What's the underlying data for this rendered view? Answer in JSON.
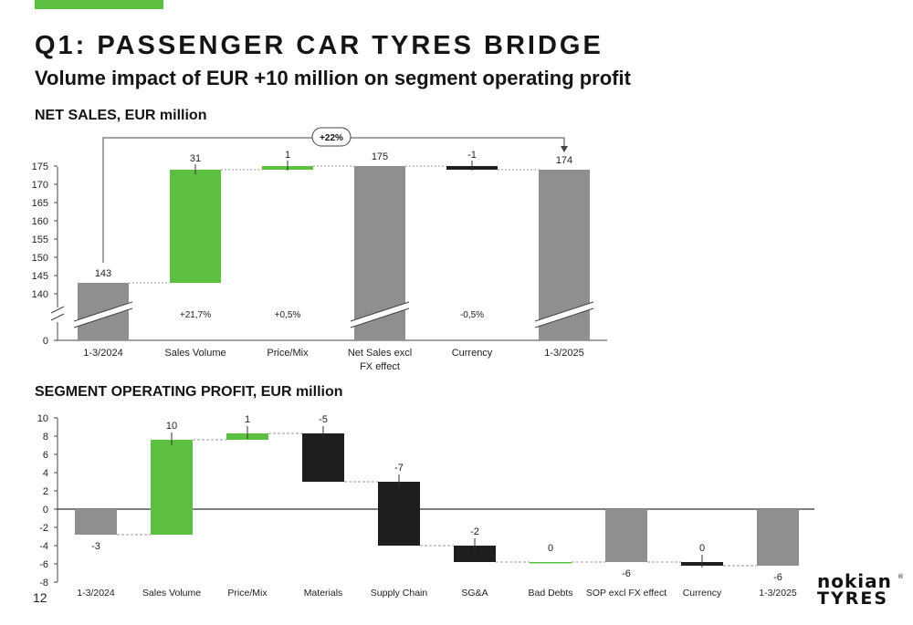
{
  "slide": {
    "title": "Q1: PASSENGER CAR TYRES BRIDGE",
    "subtitle": "Volume impact of EUR +10 million on segment operating profit",
    "page_number": "12",
    "logo_line1": "nokian",
    "logo_line2": "TYRES",
    "logo_reg": "®"
  },
  "colors": {
    "green": "#5cbf3f",
    "gray": "#8f8f8f",
    "black": "#1e1e1e"
  },
  "chart_data": [
    {
      "type": "bar",
      "subtype": "waterfall",
      "title": "NET SALES, EUR million",
      "categories": [
        "1-3/2024",
        "Sales Volume",
        "Price/Mix",
        "Net Sales excl FX effect",
        "Currency",
        "1-3/2025"
      ],
      "category_lines": [
        [
          "1-3/2024"
        ],
        [
          "Sales Volume"
        ],
        [
          "Price/Mix"
        ],
        [
          "Net Sales excl",
          "FX effect"
        ],
        [
          "Currency"
        ],
        [
          "1-3/2025"
        ]
      ],
      "bars": [
        {
          "kind": "total",
          "start": 0,
          "end": 143,
          "color": "gray",
          "label": "143",
          "broken": true
        },
        {
          "kind": "delta",
          "start": 143,
          "end": 174,
          "color": "green",
          "label": "31",
          "pct": "+21,7%"
        },
        {
          "kind": "delta",
          "start": 174,
          "end": 175,
          "color": "green",
          "label": "1",
          "pct": "+0,5%"
        },
        {
          "kind": "total",
          "start": 0,
          "end": 175,
          "color": "gray",
          "label": "175",
          "broken": true
        },
        {
          "kind": "delta",
          "start": 175,
          "end": 174,
          "color": "black",
          "label": "-1",
          "pct": "-0,5%"
        },
        {
          "kind": "total",
          "start": 0,
          "end": 174,
          "color": "gray",
          "label": "174",
          "broken": true
        }
      ],
      "yticks": [
        0,
        140,
        145,
        150,
        155,
        160,
        165,
        170,
        175
      ],
      "ylim": [
        140,
        175
      ],
      "axis_break": true,
      "growth_label": "+22%"
    },
    {
      "type": "bar",
      "subtype": "waterfall",
      "title": "SEGMENT OPERATING PROFIT, EUR million",
      "categories": [
        "1-3/2024",
        "Sales Volume",
        "Price/Mix",
        "Materials",
        "Supply Chain",
        "SG&A",
        "Bad Debts",
        "SOP excl FX effect",
        "Currency",
        "1-3/2025"
      ],
      "bars": [
        {
          "kind": "total",
          "start": 0,
          "end": -2.8,
          "color": "gray",
          "label": "-3"
        },
        {
          "kind": "delta",
          "start": -2.8,
          "end": 7.6,
          "color": "green",
          "label": "10"
        },
        {
          "kind": "delta",
          "start": 7.6,
          "end": 8.3,
          "color": "green",
          "label": "1"
        },
        {
          "kind": "delta",
          "start": 8.3,
          "end": 3.0,
          "color": "black",
          "label": "-5"
        },
        {
          "kind": "delta",
          "start": 3.0,
          "end": -4.0,
          "color": "black",
          "label": "-7"
        },
        {
          "kind": "delta",
          "start": -4.0,
          "end": -5.8,
          "color": "black",
          "label": "-2"
        },
        {
          "kind": "delta",
          "start": -5.8,
          "end": -5.8,
          "color": "green",
          "label": "0"
        },
        {
          "kind": "total",
          "start": 0,
          "end": -5.8,
          "color": "gray",
          "label": "-6"
        },
        {
          "kind": "delta",
          "start": -5.8,
          "end": -6.2,
          "color": "black",
          "label": "0"
        },
        {
          "kind": "total",
          "start": 0,
          "end": -6.2,
          "color": "gray",
          "label": "-6"
        }
      ],
      "yticks": [
        10,
        8,
        6,
        4,
        2,
        0,
        -2,
        -4,
        -6,
        -8
      ],
      "ylim": [
        -8,
        10
      ]
    }
  ]
}
